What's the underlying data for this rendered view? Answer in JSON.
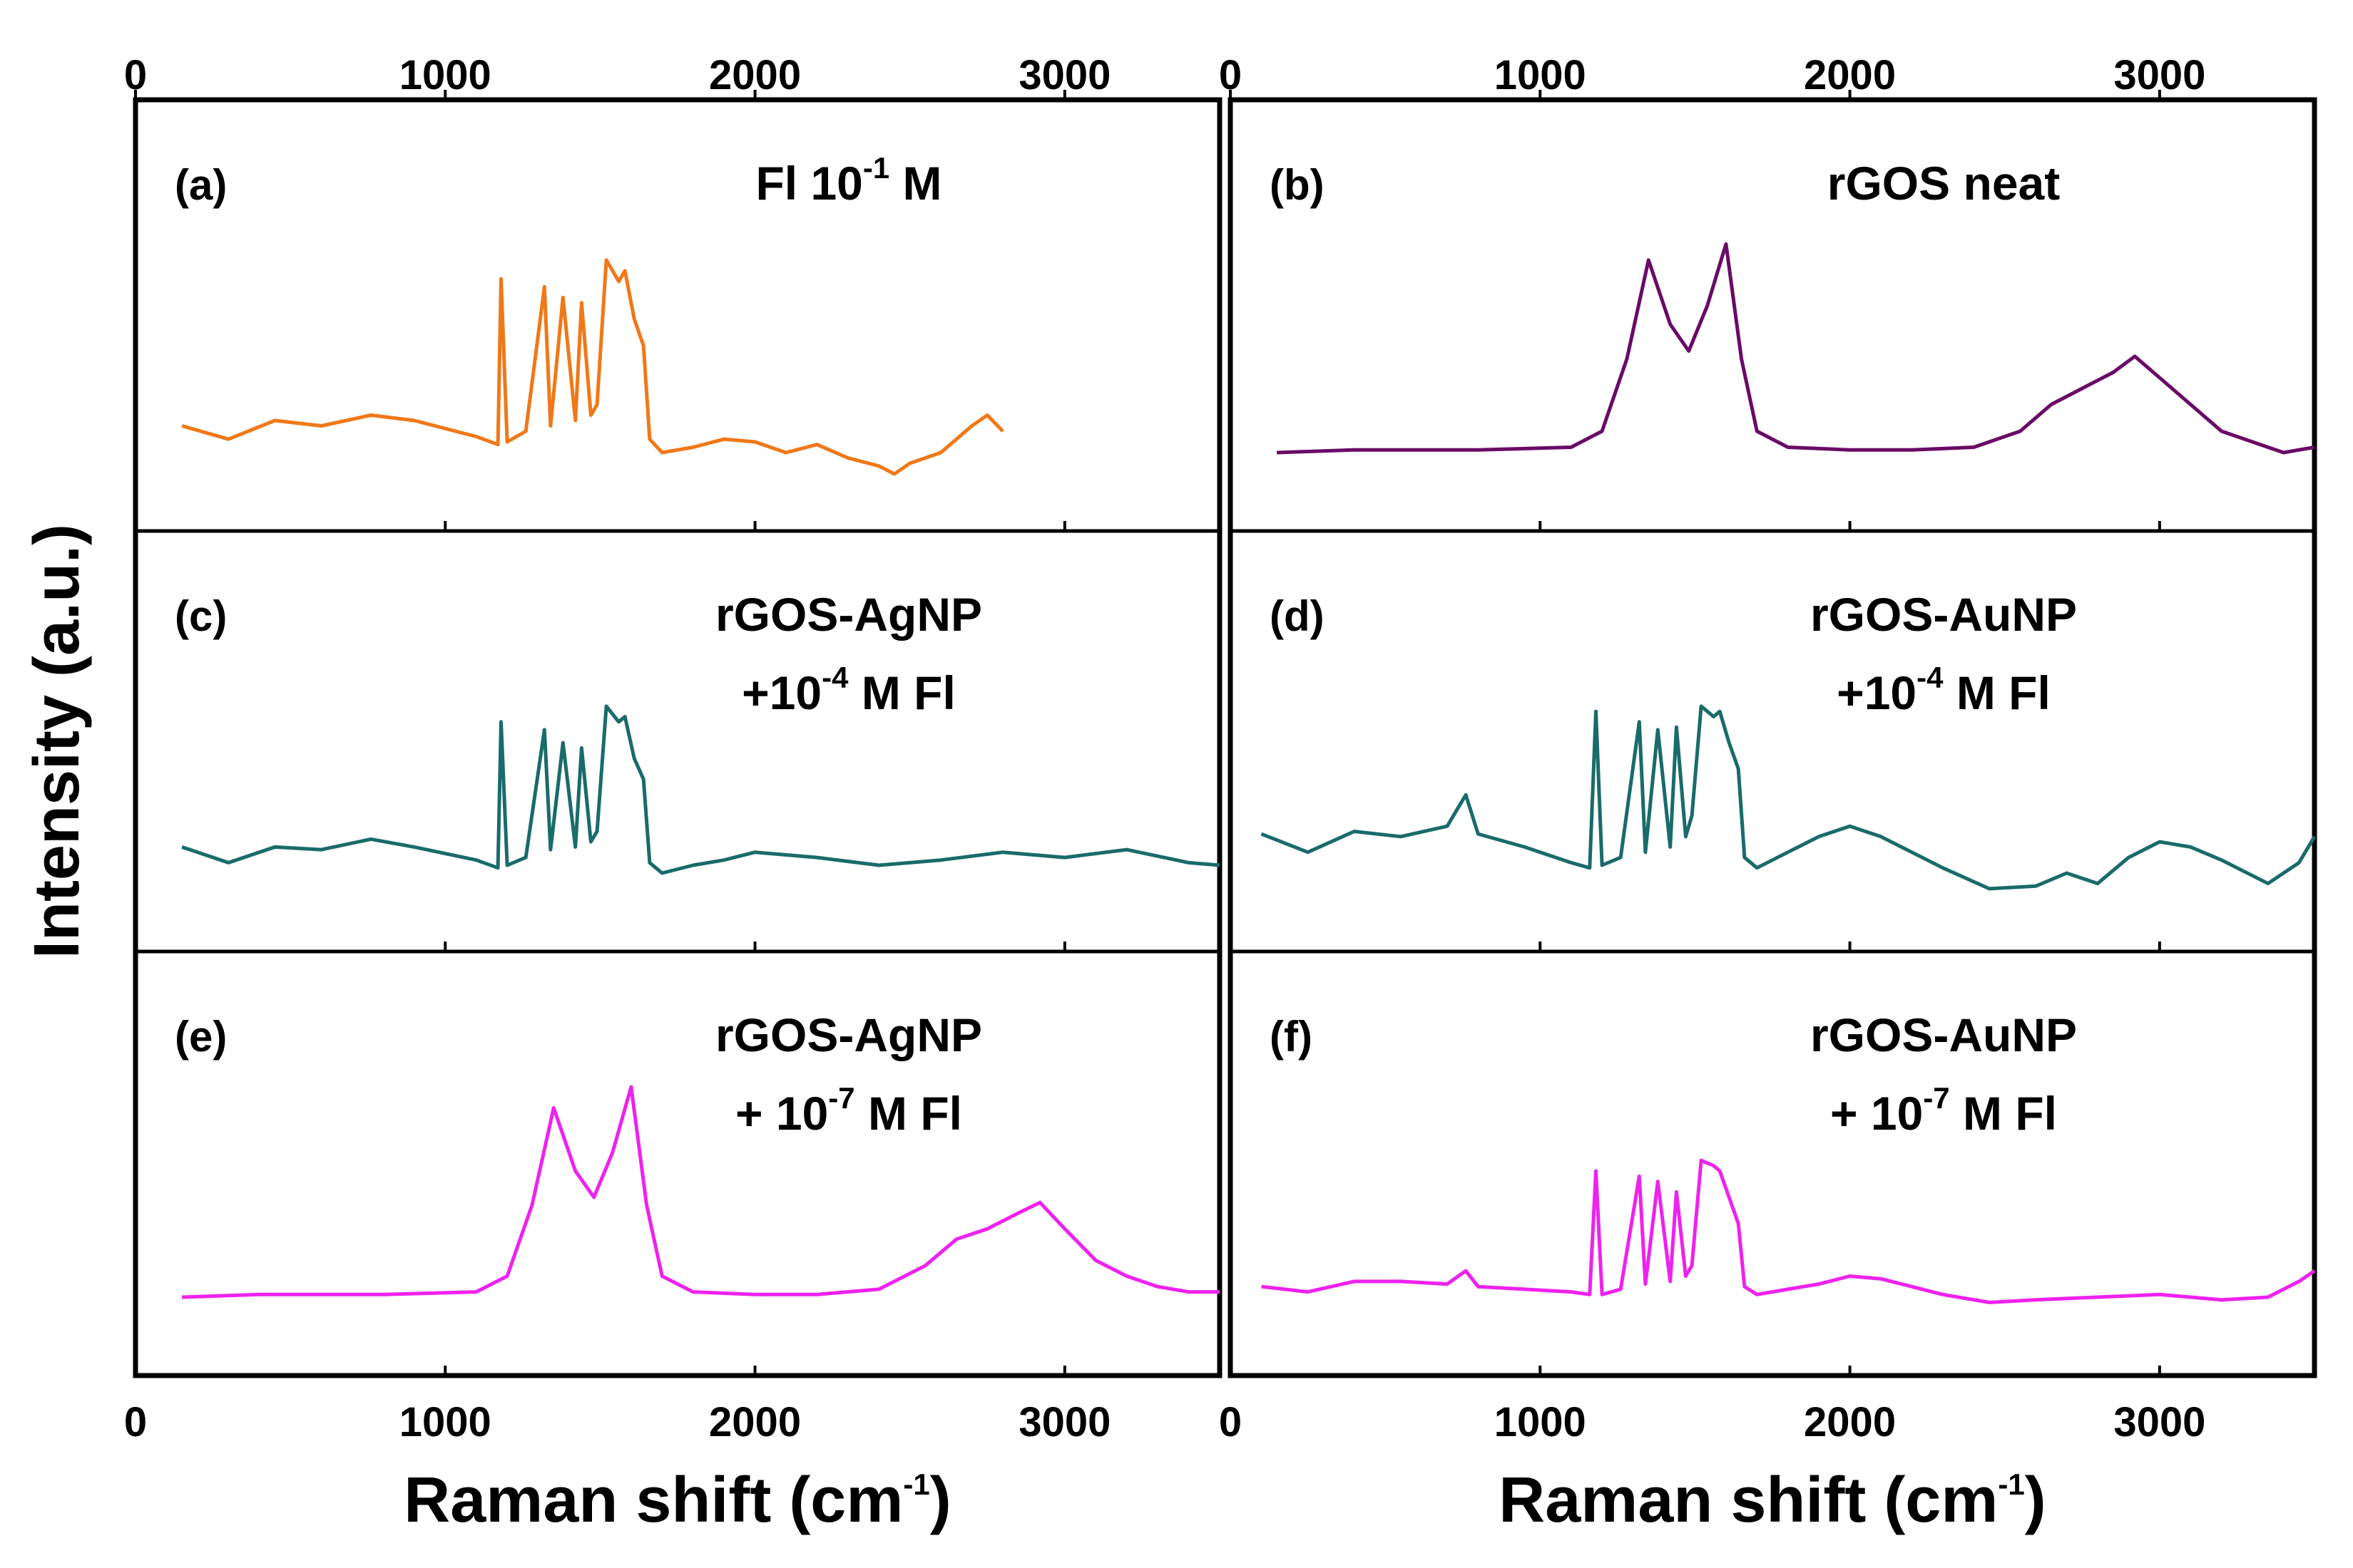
{
  "chart_data": {
    "type": "line",
    "ylabel": "Intensity (a.u.)",
    "xlabel": "Raman shift (cm",
    "xlabel_sup": "-1",
    "xlabel_close": ")",
    "xlim": [
      0,
      3500
    ],
    "xticks": [
      "0",
      "1000",
      "2000",
      "3000"
    ],
    "xtick_values": [
      0,
      1000,
      2000,
      3000
    ],
    "panels": [
      {
        "id": "a",
        "label": "(a)",
        "annotation": {
          "lines": [
            {
              "pre": "Fl 10",
              "sup": "-1",
              "post": " M"
            }
          ]
        },
        "color": "#f07818",
        "series": {
          "x": [
            150,
            300,
            450,
            600,
            760,
            900,
            1100,
            1170,
            1180,
            1200,
            1260,
            1320,
            1340,
            1380,
            1420,
            1440,
            1470,
            1490,
            1520,
            1560,
            1580,
            1610,
            1640,
            1660,
            1700,
            1800,
            1900,
            2000,
            2100,
            2200,
            2300,
            2400,
            2450,
            2500,
            2600,
            2700,
            2750,
            2800
          ],
          "y": [
            0.1,
            0.05,
            0.12,
            0.1,
            0.14,
            0.12,
            0.06,
            0.03,
            0.65,
            0.04,
            0.08,
            0.62,
            0.1,
            0.58,
            0.12,
            0.56,
            0.14,
            0.18,
            0.72,
            0.64,
            0.68,
            0.5,
            0.4,
            0.05,
            0.0,
            0.02,
            0.05,
            0.04,
            0.0,
            0.03,
            -0.02,
            -0.05,
            -0.08,
            -0.04,
            0.0,
            0.1,
            0.14,
            0.08
          ]
        }
      },
      {
        "id": "b",
        "label": "(b)",
        "annotation": {
          "lines": [
            {
              "pre": "rGOS neat",
              "sup": "",
              "post": ""
            }
          ]
        },
        "color": "#6a0a66",
        "series": {
          "x": [
            150,
            400,
            800,
            1100,
            1200,
            1280,
            1350,
            1420,
            1480,
            1540,
            1600,
            1650,
            1700,
            1800,
            2000,
            2200,
            2400,
            2550,
            2650,
            2750,
            2850,
            2920,
            3000,
            3100,
            3200,
            3300,
            3400,
            3500
          ],
          "y": [
            0.0,
            0.01,
            0.01,
            0.02,
            0.08,
            0.35,
            0.72,
            0.48,
            0.38,
            0.55,
            0.78,
            0.35,
            0.08,
            0.02,
            0.01,
            0.01,
            0.02,
            0.08,
            0.18,
            0.24,
            0.3,
            0.36,
            0.28,
            0.18,
            0.08,
            0.04,
            0.0,
            0.02
          ]
        }
      },
      {
        "id": "c",
        "label": "(c)",
        "annotation": {
          "lines": [
            {
              "pre": "rGOS-AgNP",
              "sup": "",
              "post": ""
            },
            {
              "pre": "+10",
              "sup": "-4",
              "post": " M Fl"
            }
          ]
        },
        "color": "#1a6b6b",
        "series": {
          "x": [
            150,
            300,
            450,
            600,
            760,
            900,
            1100,
            1170,
            1180,
            1200,
            1260,
            1320,
            1340,
            1380,
            1420,
            1440,
            1470,
            1490,
            1520,
            1560,
            1580,
            1610,
            1640,
            1660,
            1700,
            1800,
            1900,
            2000,
            2200,
            2400,
            2600,
            2800,
            3000,
            3200,
            3400,
            3500
          ],
          "y": [
            0.1,
            0.04,
            0.1,
            0.09,
            0.13,
            0.1,
            0.05,
            0.02,
            0.58,
            0.03,
            0.06,
            0.55,
            0.09,
            0.5,
            0.1,
            0.48,
            0.12,
            0.16,
            0.64,
            0.58,
            0.6,
            0.44,
            0.36,
            0.04,
            0.0,
            0.03,
            0.05,
            0.08,
            0.06,
            0.03,
            0.05,
            0.08,
            0.06,
            0.09,
            0.04,
            0.03
          ]
        }
      },
      {
        "id": "d",
        "label": "(d)",
        "annotation": {
          "lines": [
            {
              "pre": "rGOS-AuNP",
              "sup": "",
              "post": ""
            },
            {
              "pre": "+10",
              "sup": "-4",
              "post": " M Fl"
            }
          ]
        },
        "color": "#1a6b6b",
        "series": {
          "x": [
            100,
            250,
            400,
            550,
            700,
            760,
            800,
            950,
            1100,
            1160,
            1180,
            1200,
            1260,
            1320,
            1340,
            1380,
            1420,
            1440,
            1470,
            1490,
            1520,
            1560,
            1580,
            1610,
            1640,
            1660,
            1700,
            1800,
            1900,
            2000,
            2100,
            2200,
            2300,
            2450,
            2600,
            2700,
            2800,
            2900,
            3000,
            3100,
            3200,
            3350,
            3450,
            3500
          ],
          "y": [
            0.15,
            0.08,
            0.16,
            0.14,
            0.18,
            0.3,
            0.15,
            0.1,
            0.04,
            0.02,
            0.62,
            0.03,
            0.06,
            0.58,
            0.08,
            0.55,
            0.1,
            0.56,
            0.14,
            0.22,
            0.64,
            0.6,
            0.62,
            0.5,
            0.4,
            0.06,
            0.02,
            0.08,
            0.14,
            0.18,
            0.14,
            0.08,
            0.02,
            -0.06,
            -0.05,
            0.0,
            -0.04,
            0.06,
            0.12,
            0.1,
            0.05,
            -0.04,
            0.04,
            0.14
          ]
        }
      },
      {
        "id": "e",
        "label": "(e)",
        "annotation": {
          "lines": [
            {
              "pre": "rGOS-AgNP",
              "sup": "",
              "post": ""
            },
            {
              "pre": "+ 10",
              "sup": "-7",
              "post": " M Fl"
            }
          ]
        },
        "color": "#ee22ee",
        "series": {
          "x": [
            150,
            400,
            800,
            1100,
            1200,
            1280,
            1350,
            1420,
            1480,
            1540,
            1600,
            1650,
            1700,
            1800,
            2000,
            2200,
            2400,
            2550,
            2650,
            2750,
            2850,
            2920,
            3000,
            3100,
            3200,
            3300,
            3400,
            3500
          ],
          "y": [
            0.0,
            0.01,
            0.01,
            0.02,
            0.08,
            0.35,
            0.72,
            0.48,
            0.38,
            0.55,
            0.8,
            0.35,
            0.08,
            0.02,
            0.01,
            0.01,
            0.03,
            0.12,
            0.22,
            0.26,
            0.32,
            0.36,
            0.26,
            0.14,
            0.08,
            0.04,
            0.02,
            0.02
          ]
        }
      },
      {
        "id": "f",
        "label": "(f)",
        "annotation": {
          "lines": [
            {
              "pre": "rGOS-AuNP",
              "sup": "",
              "post": ""
            },
            {
              "pre": "+ 10",
              "sup": "-7",
              "post": " M Fl"
            }
          ]
        },
        "color": "#ee22ee",
        "series": {
          "x": [
            100,
            250,
            400,
            550,
            700,
            760,
            800,
            950,
            1100,
            1160,
            1180,
            1200,
            1260,
            1320,
            1340,
            1380,
            1420,
            1440,
            1470,
            1490,
            1520,
            1560,
            1580,
            1610,
            1640,
            1660,
            1700,
            1800,
            1900,
            2000,
            2100,
            2200,
            2300,
            2450,
            2600,
            2800,
            3000,
            3200,
            3350,
            3450,
            3500
          ],
          "y": [
            0.04,
            0.02,
            0.06,
            0.06,
            0.05,
            0.1,
            0.04,
            0.03,
            0.02,
            0.01,
            0.48,
            0.01,
            0.03,
            0.46,
            0.05,
            0.44,
            0.06,
            0.4,
            0.08,
            0.12,
            0.52,
            0.5,
            0.48,
            0.38,
            0.28,
            0.04,
            0.01,
            0.03,
            0.05,
            0.08,
            0.07,
            0.04,
            0.01,
            -0.02,
            -0.01,
            0.0,
            0.01,
            -0.01,
            0.0,
            0.06,
            0.1
          ]
        }
      }
    ]
  }
}
